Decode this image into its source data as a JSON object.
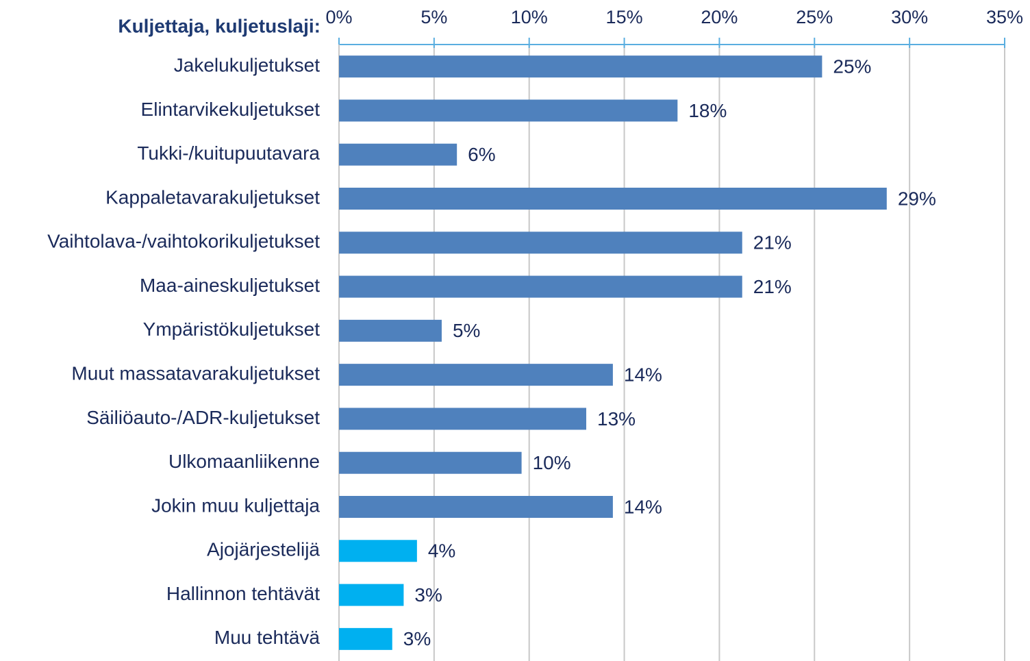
{
  "chart_data": {
    "type": "bar",
    "orientation": "horizontal",
    "title": "Kuljettaja, kuljetuslaji:",
    "categories": [
      "Jakelukuljetukset",
      "Elintarvikekuljetukset",
      "Tukki-/kuitupuutavara",
      "Kappaletavarakuljetukset",
      "Vaihtolava-/vaihtokorikuljetukset",
      "Maa-aineskuljetukset",
      "Ympäristökuljetukset",
      "Muut massatavarakuljetukset",
      "Säiliöauto-/ADR-kuljetukset",
      "Ulkomaanliikenne",
      "Jokin muu kuljettaja",
      "Ajojärjestelijä",
      "Hallinnon tehtävät",
      "Muu tehtävä"
    ],
    "values": [
      25.4,
      17.8,
      6.2,
      28.8,
      21.2,
      21.2,
      5.4,
      14.4,
      13.0,
      9.6,
      14.4,
      4.1,
      3.4,
      2.8
    ],
    "value_labels": [
      "25%",
      "18%",
      "6%",
      "29%",
      "21%",
      "21%",
      "5%",
      "14%",
      "13%",
      "10%",
      "14%",
      "4%",
      "3%",
      "3%"
    ],
    "colors": [
      "#4f81bd",
      "#4f81bd",
      "#4f81bd",
      "#4f81bd",
      "#4f81bd",
      "#4f81bd",
      "#4f81bd",
      "#4f81bd",
      "#4f81bd",
      "#4f81bd",
      "#4f81bd",
      "#00b0f0",
      "#00b0f0",
      "#00b0f0"
    ],
    "xlim": [
      0,
      35
    ],
    "xticks": [
      {
        "value": 0,
        "label": "0%"
      },
      {
        "value": 5,
        "label": "5%"
      },
      {
        "value": 10,
        "label": "10%"
      },
      {
        "value": 15,
        "label": "15%"
      },
      {
        "value": 20,
        "label": "20%"
      },
      {
        "value": 25,
        "label": "25%"
      },
      {
        "value": 30,
        "label": "30%"
      },
      {
        "value": 35,
        "label": "35%"
      }
    ],
    "grid": true
  }
}
